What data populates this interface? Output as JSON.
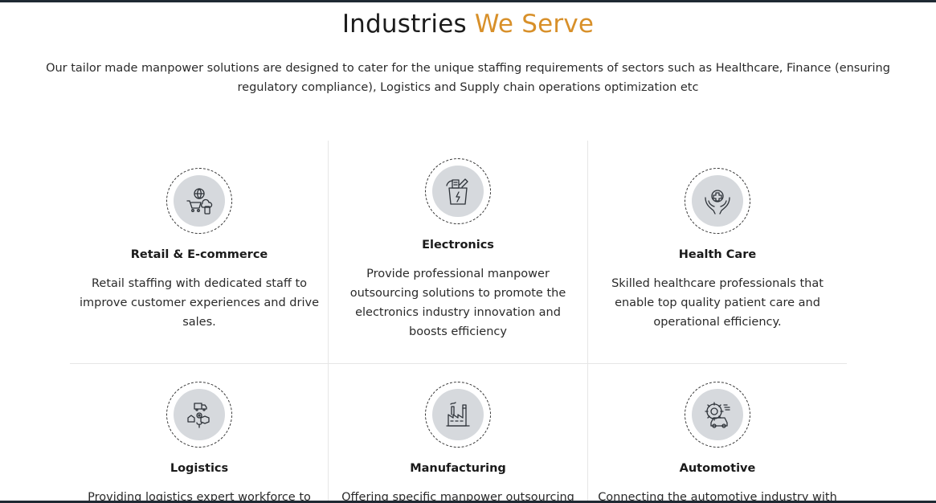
{
  "section": {
    "title_main": "Industries",
    "title_accent": "We Serve",
    "intro": "Our tailor made manpower solutions are designed to cater for the unique staffing requirements of sectors such as Healthcare, Finance (ensuring regulatory compliance), Logistics and Supply chain operations optimization etc"
  },
  "colors": {
    "accent": "#d8902a",
    "icon_bg": "#d6d9dd",
    "divider": "#e6e6e6"
  },
  "industries": [
    {
      "title": "Retail & E-commerce",
      "icon": "retail-ecommerce-icon",
      "description": "Retail staffing with dedicated staff to improve customer experiences and drive sales."
    },
    {
      "title": "Electronics",
      "icon": "electronics-icon",
      "description": "Provide professional manpower outsourcing solutions to promote the electronics industry innovation and boosts efficiency"
    },
    {
      "title": "Health Care",
      "icon": "health-care-icon",
      "description": "Skilled healthcare professionals that enable top quality patient care and operational efficiency."
    },
    {
      "title": "Logistics",
      "icon": "logistics-icon",
      "description": "Providing logistics expert workforce to"
    },
    {
      "title": "Manufacturing",
      "icon": "manufacturing-icon",
      "description": "Offering specific manpower outsourcing"
    },
    {
      "title": "Automotive",
      "icon": "automotive-icon",
      "description": "Connecting the automotive industry with"
    }
  ]
}
